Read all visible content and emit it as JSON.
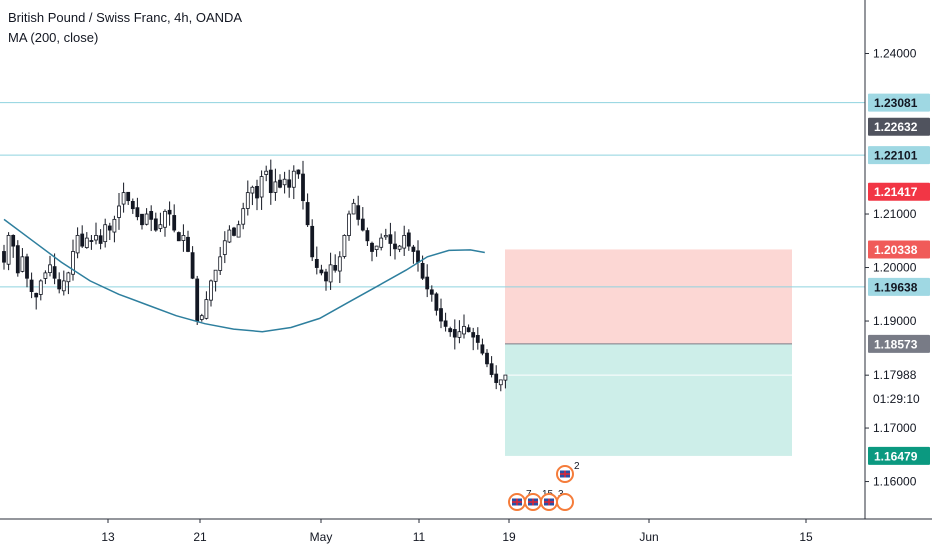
{
  "legend": {
    "title": "British Pound / Swiss Franc, 4h, OANDA",
    "indicator": "MA (200, close)"
  },
  "price_axis": {
    "ticks": [
      "1.24000",
      "1.21000",
      "1.20000",
      "1.19000",
      "1.17000",
      "1.16000"
    ],
    "tick_values": [
      1.24,
      1.21,
      1.2,
      1.19,
      1.17,
      1.16
    ],
    "badges": [
      {
        "label": "1.23081",
        "value": 1.23081,
        "color": "#9fd8e3",
        "text_color": "#131722"
      },
      {
        "label": "1.22632",
        "value": 1.22632,
        "color": "#50535e",
        "text_color": "#ffffff"
      },
      {
        "label": "1.22101",
        "value": 1.22101,
        "color": "#9fd8e3",
        "text_color": "#131722"
      },
      {
        "label": "1.21417",
        "value": 1.21417,
        "color": "#f23645",
        "text_color": "#ffffff"
      },
      {
        "label": "1.20338",
        "value": 1.20338,
        "color": "#f05b59",
        "text_color": "#ffffff"
      },
      {
        "label": "1.19638",
        "value": 1.19638,
        "color": "#9fd8e3",
        "text_color": "#131722"
      },
      {
        "label": "1.18573",
        "value": 1.18573,
        "color": "#787b86",
        "text_color": "#ffffff"
      },
      {
        "label": "1.16479",
        "value": 1.16479,
        "color": "#0b9980",
        "text_color": "#ffffff"
      }
    ],
    "current_price": "1.17988",
    "countdown": "01:29:10"
  },
  "time_axis": {
    "labels": [
      "13",
      "21",
      "May",
      "11",
      "19",
      "Jun",
      "15"
    ]
  },
  "events": {
    "row_upper": [
      "2"
    ],
    "row_lower": [
      "7",
      "15",
      "3"
    ]
  },
  "colors": {
    "up_candle": "#131722",
    "down_candle": "#131722",
    "ma_line": "#2e7f9e",
    "hline": "#8fd3df",
    "stop_zone": "#fcd7d4",
    "target_zone": "#cdeee9",
    "axis_border": "#2a2e39"
  },
  "chart_data": {
    "type": "candlestick",
    "title": "British Pound / Swiss Franc, 4h, OANDA",
    "symbol": "GBPCHF",
    "timeframe": "4h",
    "indicator": {
      "name": "MA (200, close)",
      "points": [
        [
          0,
          1.209
        ],
        [
          8,
          1.205
        ],
        [
          16,
          1.201
        ],
        [
          24,
          1.1975
        ],
        [
          32,
          1.195
        ],
        [
          40,
          1.193
        ],
        [
          48,
          1.191
        ],
        [
          56,
          1.1895
        ],
        [
          64,
          1.1885
        ],
        [
          72,
          1.188
        ],
        [
          80,
          1.1888
        ],
        [
          88,
          1.1905
        ],
        [
          96,
          1.1935
        ],
        [
          104,
          1.1965
        ],
        [
          112,
          1.1995
        ],
        [
          118,
          1.202
        ],
        [
          124,
          1.2032
        ],
        [
          130,
          1.2033
        ],
        [
          134,
          1.2028
        ]
      ]
    },
    "x_labels": [
      "13",
      "21",
      "May",
      "11",
      "19",
      "Jun",
      "15"
    ],
    "ylim": [
      1.153,
      1.25
    ],
    "y_ticks": [
      1.24,
      1.21,
      1.2,
      1.19,
      1.17,
      1.16
    ],
    "horizontal_lines": [
      1.23081,
      1.22101,
      1.19638
    ],
    "position": {
      "type": "long",
      "entry": 1.18573,
      "stop": 1.20338,
      "target": 1.16479
    },
    "last_price": 1.17988,
    "closes": [
      1.201,
      1.206,
      1.204,
      1.199,
      1.202,
      1.198,
      1.1955,
      1.1945,
      1.1975,
      1.199,
      1.2005,
      1.198,
      1.196,
      1.1975,
      1.199,
      1.203,
      1.206,
      1.204,
      1.2055,
      1.205,
      1.206,
      1.2045,
      1.208,
      1.207,
      1.209,
      1.2115,
      1.214,
      1.2125,
      1.211,
      1.2095,
      1.208,
      1.21,
      1.209,
      1.207,
      1.208,
      1.2105,
      1.21,
      1.207,
      1.205,
      1.206,
      1.203,
      1.198,
      1.19,
      1.191,
      1.194,
      1.1975,
      1.1995,
      1.202,
      1.205,
      1.207,
      1.206,
      1.208,
      1.211,
      1.214,
      1.215,
      1.213,
      1.217,
      1.218,
      1.214,
      1.216,
      1.215,
      1.2165,
      1.215,
      1.218,
      1.2175,
      1.2125,
      1.208,
      1.202,
      1.2,
      1.199,
      1.1975,
      1.2005,
      1.1995,
      1.202,
      1.206,
      1.21,
      1.212,
      1.209,
      1.207,
      1.205,
      1.203,
      1.204,
      1.2055,
      1.206,
      1.2045,
      1.2035,
      1.204,
      1.206,
      1.204,
      1.203,
      1.201,
      1.198,
      1.196,
      1.195,
      1.192,
      1.19,
      1.189,
      1.188,
      1.187,
      1.188,
      1.189,
      1.188,
      1.187,
      1.186,
      1.184,
      1.182,
      1.18,
      1.1785,
      1.179,
      1.1799
    ]
  }
}
